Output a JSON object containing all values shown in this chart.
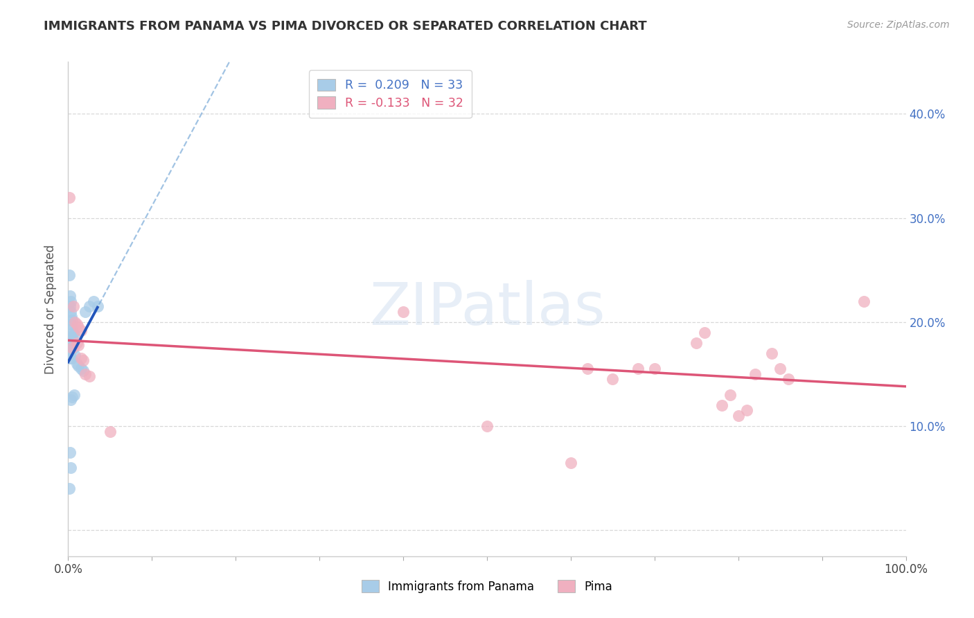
{
  "title": "IMMIGRANTS FROM PANAMA VS PIMA DIVORCED OR SEPARATED CORRELATION CHART",
  "source": "Source: ZipAtlas.com",
  "ylabel": "Divorced or Separated",
  "r_blue": 0.209,
  "r_pink": -0.133,
  "n_blue": 33,
  "n_pink": 32,
  "blue_scatter_color": "#a8cce8",
  "pink_scatter_color": "#f0b0c0",
  "blue_line_color": "#2255bb",
  "pink_line_color": "#dd5577",
  "blue_dash_color": "#7aaad8",
  "watermark_color": "#d0dff0",
  "blue_dots_x": [
    0.001,
    0.001,
    0.002,
    0.002,
    0.002,
    0.002,
    0.003,
    0.003,
    0.003,
    0.003,
    0.004,
    0.004,
    0.004,
    0.005,
    0.005,
    0.005,
    0.005,
    0.006,
    0.006,
    0.007,
    0.007,
    0.008,
    0.01,
    0.012,
    0.015,
    0.018,
    0.02,
    0.025,
    0.03,
    0.035,
    0.002,
    0.003,
    0.004
  ],
  "blue_dots_y": [
    0.245,
    0.04,
    0.225,
    0.215,
    0.17,
    0.075,
    0.22,
    0.21,
    0.18,
    0.06,
    0.205,
    0.198,
    0.183,
    0.202,
    0.193,
    0.185,
    0.128,
    0.19,
    0.175,
    0.188,
    0.13,
    0.168,
    0.16,
    0.158,
    0.155,
    0.153,
    0.21,
    0.215,
    0.22,
    0.215,
    0.165,
    0.125,
    0.165
  ],
  "pink_dots_x": [
    0.001,
    0.005,
    0.006,
    0.008,
    0.01,
    0.01,
    0.012,
    0.012,
    0.015,
    0.015,
    0.018,
    0.02,
    0.025,
    0.05,
    0.5,
    0.6,
    0.62,
    0.65,
    0.68,
    0.7,
    0.75,
    0.76,
    0.78,
    0.79,
    0.8,
    0.81,
    0.82,
    0.84,
    0.85,
    0.86,
    0.95,
    0.4
  ],
  "pink_dots_y": [
    0.32,
    0.175,
    0.215,
    0.2,
    0.198,
    0.18,
    0.195,
    0.178,
    0.192,
    0.165,
    0.163,
    0.15,
    0.148,
    0.095,
    0.1,
    0.065,
    0.155,
    0.145,
    0.155,
    0.155,
    0.18,
    0.19,
    0.12,
    0.13,
    0.11,
    0.115,
    0.15,
    0.17,
    0.155,
    0.145,
    0.22,
    0.21
  ],
  "xlim": [
    0.0,
    1.0
  ],
  "ylim": [
    -0.025,
    0.45
  ],
  "xtick_positions": [
    0.0,
    0.1,
    0.2,
    0.3,
    0.4,
    0.5,
    0.6,
    0.7,
    0.8,
    0.9,
    1.0
  ],
  "xtick_labels": [
    "0.0%",
    "",
    "",
    "",
    "",
    "",
    "",
    "",
    "",
    "",
    "100.0%"
  ],
  "ytick_positions": [
    0.0,
    0.1,
    0.2,
    0.3,
    0.4
  ],
  "ytick_labels_right": [
    "",
    "10.0%",
    "20.0%",
    "30.0%",
    "40.0%"
  ],
  "grid_color": "#d8d8d8",
  "bg_color": "#ffffff"
}
